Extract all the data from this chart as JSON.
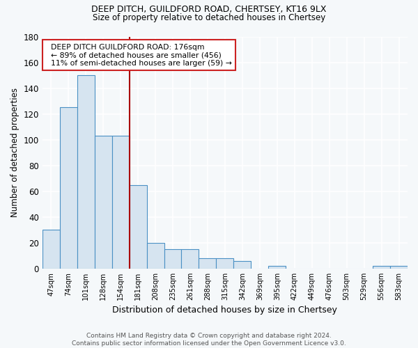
{
  "title1": "DEEP DITCH, GUILDFORD ROAD, CHERTSEY, KT16 9LX",
  "title2": "Size of property relative to detached houses in Chertsey",
  "xlabel": "Distribution of detached houses by size in Chertsey",
  "ylabel": "Number of detached properties",
  "bin_labels": [
    "47sqm",
    "74sqm",
    "101sqm",
    "128sqm",
    "154sqm",
    "181sqm",
    "208sqm",
    "235sqm",
    "261sqm",
    "288sqm",
    "315sqm",
    "342sqm",
    "369sqm",
    "395sqm",
    "422sqm",
    "449sqm",
    "476sqm",
    "503sqm",
    "529sqm",
    "556sqm",
    "583sqm"
  ],
  "bar_heights": [
    30,
    125,
    150,
    103,
    103,
    65,
    20,
    15,
    15,
    8,
    8,
    6,
    0,
    2,
    0,
    0,
    0,
    0,
    0,
    2,
    2
  ],
  "bar_color": "#d6e4f0",
  "bar_edge_color": "#4a90c4",
  "vline_color": "#aa0000",
  "annotation_line1": "  DEEP DITCH GUILDFORD ROAD: 176sqm",
  "annotation_line2": "  ← 89% of detached houses are smaller (456)",
  "annotation_line3": "  11% of semi-detached houses are larger (59) →",
  "annotation_box_color": "#ffffff",
  "annotation_box_edge": "#cc2222",
  "ylim": [
    0,
    180
  ],
  "yticks": [
    0,
    20,
    40,
    60,
    80,
    100,
    120,
    140,
    160,
    180
  ],
  "footer": "Contains HM Land Registry data © Crown copyright and database right 2024.\nContains public sector information licensed under the Open Government Licence v3.0.",
  "bg_color": "#f5f8fa",
  "grid_color": "#ffffff"
}
